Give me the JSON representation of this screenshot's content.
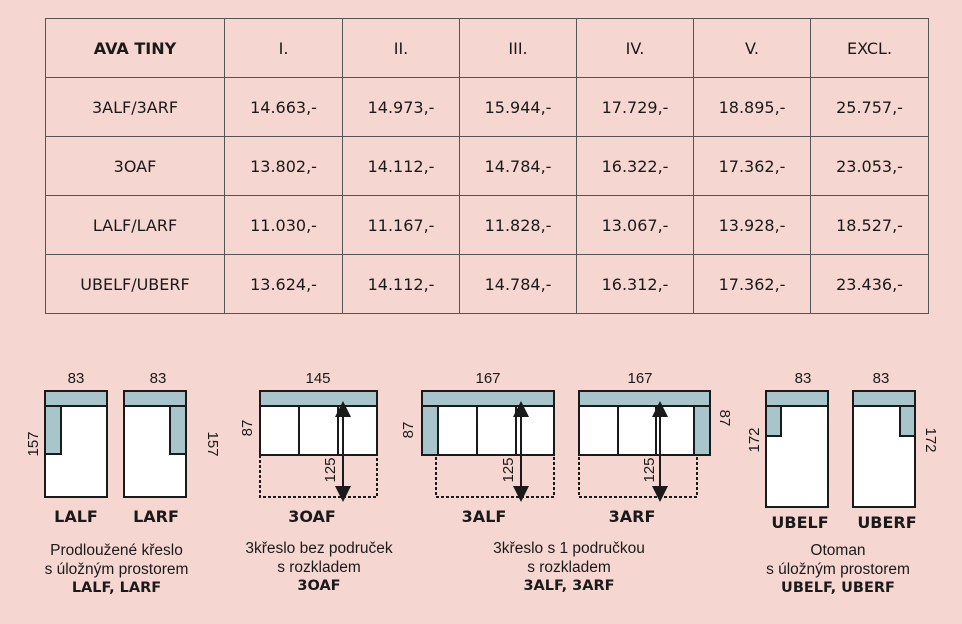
{
  "table": {
    "headers": [
      "AVA TINY",
      "I.",
      "II.",
      "III.",
      "IV.",
      "V.",
      "EXCL."
    ],
    "rows": [
      [
        "3ALF/3ARF",
        "14.663,-",
        "14.973,-",
        "15.944,-",
        "17.729,-",
        "18.895,-",
        "25.757,-"
      ],
      [
        "3OAF",
        "13.802,-",
        "14.112,-",
        "14.784,-",
        "16.322,-",
        "17.362,-",
        "23.053,-"
      ],
      [
        "LALF/LARF",
        "11.030,-",
        "11.167,-",
        "11.828,-",
        "13.067,-",
        "13.928,-",
        "18.527,-"
      ],
      [
        "UBELF/UBERF",
        "13.624,-",
        "14.112,-",
        "14.784,-",
        "16.312,-",
        "17.362,-",
        "23.436,-"
      ]
    ]
  },
  "diagrams": {
    "lalf": {
      "width": "83",
      "depth": "157",
      "code": "LALF"
    },
    "larf": {
      "width": "83",
      "depth": "157",
      "code": "LARF"
    },
    "oaf": {
      "width": "145",
      "depth": "87",
      "extended": "125",
      "code": "3OAF"
    },
    "alf": {
      "width": "167",
      "depth": "87",
      "extended": "125",
      "code": "3ALF"
    },
    "arf": {
      "width": "167",
      "depth": "87",
      "extended": "125",
      "code": "3ARF"
    },
    "ubelf": {
      "width": "83",
      "depth": "172",
      "code": "UBELF"
    },
    "uberf": {
      "width": "83",
      "depth": "172",
      "code": "UBERF"
    }
  },
  "captions": {
    "chaise": {
      "line1": "Prodloužené křeslo",
      "line2": "s úložným prostorem",
      "line3": "LALF, LARF"
    },
    "oaf": {
      "line1": "3křeslo bez područek",
      "line2": "s rozkladem",
      "line3": "3OAF"
    },
    "alf": {
      "line1": "3křeslo s 1 područkou",
      "line2": "s rozkladem",
      "line3": "3ALF, 3ARF"
    },
    "otoman": {
      "line1": "Otoman",
      "line2": "s úložným prostorem",
      "line3": "UBELF, UBERF"
    }
  },
  "colors": {
    "background": "#f6d6d0",
    "upholstery_fill": "#a9c5cc",
    "seat_fill": "#ffffff",
    "outline": "#1a1a1a"
  }
}
